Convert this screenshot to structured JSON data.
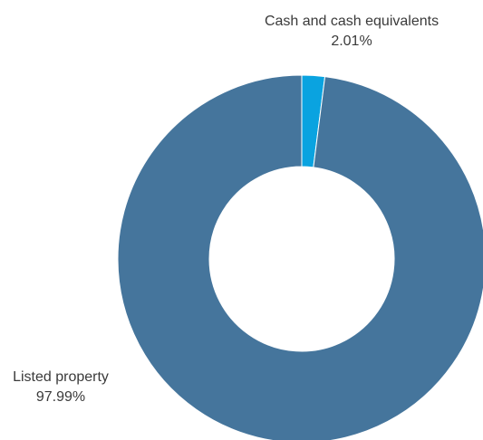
{
  "chart_data": {
    "type": "pie",
    "subtype": "donut",
    "categories": [
      "Cash and cash equivalents",
      "Listed property"
    ],
    "values": [
      2.01,
      97.99
    ],
    "value_labels": [
      "2.01%",
      "97.99%"
    ],
    "colors": [
      "#0aa3e0",
      "#45759c"
    ],
    "legend": "none"
  }
}
